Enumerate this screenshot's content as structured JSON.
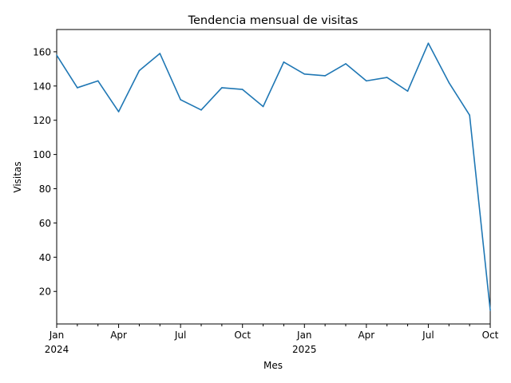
{
  "chart_data": {
    "type": "line",
    "title": "Tendencia mensual de visitas",
    "xlabel": "Mes",
    "ylabel": "Visitas",
    "x": [
      "2024-01",
      "2024-02",
      "2024-03",
      "2024-04",
      "2024-05",
      "2024-06",
      "2024-07",
      "2024-08",
      "2024-09",
      "2024-10",
      "2024-11",
      "2024-12",
      "2025-01",
      "2025-02",
      "2025-03",
      "2025-04",
      "2025-05",
      "2025-06",
      "2025-07",
      "2025-08",
      "2025-09",
      "2025-10"
    ],
    "series": [
      {
        "values": [
          158,
          139,
          143,
          125,
          149,
          159,
          132,
          126,
          139,
          138,
          128,
          154,
          147,
          146,
          153,
          143,
          145,
          137,
          165,
          142,
          123,
          9
        ]
      }
    ],
    "xlim": [
      "2024-01",
      "2025-10"
    ],
    "ylim": [
      1,
      173
    ],
    "yticks": [
      20,
      40,
      60,
      80,
      100,
      120,
      140,
      160
    ],
    "xticks": [
      {
        "x": "2024-01",
        "label": "Jan",
        "sublabel": "2024"
      },
      {
        "x": "2024-04",
        "label": "Apr"
      },
      {
        "x": "2024-07",
        "label": "Jul"
      },
      {
        "x": "2024-10",
        "label": "Oct"
      },
      {
        "x": "2025-01",
        "label": "Jan",
        "sublabel": "2025"
      },
      {
        "x": "2025-04",
        "label": "Apr"
      },
      {
        "x": "2025-07",
        "label": "Jul"
      },
      {
        "x": "2025-10",
        "label": "Oct"
      }
    ],
    "minor_xticks": [
      "2024-02",
      "2024-03",
      "2024-05",
      "2024-06",
      "2024-08",
      "2024-09",
      "2024-11",
      "2024-12",
      "2025-02",
      "2025-03",
      "2025-05",
      "2025-06",
      "2025-08",
      "2025-09"
    ],
    "grid": false,
    "legend": "none",
    "colors": {
      "line": "#1f77b4",
      "axis": "#000000",
      "background": "#ffffff"
    }
  }
}
